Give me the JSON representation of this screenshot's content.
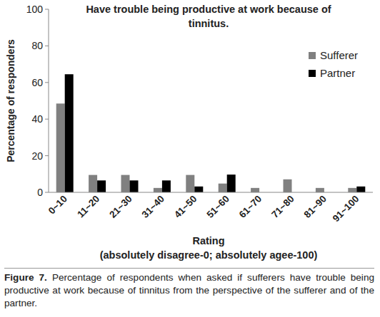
{
  "chart_data": {
    "type": "bar",
    "title": "Have trouble being productive at work because of tinnitus.",
    "y_label": "Percentage of responders",
    "x_label": "Rating",
    "annotations": [
      "(absolutely disagree-0; absolutely agee-100)",
      "Figure 7.",
      "Percentage of respondents when asked if sufferers have trouble being productive at work because of tinnitus from the perspective of the sufferer and of the partner."
    ],
    "categories": [
      "0~10",
      "11~20",
      "21~30",
      "31~40",
      "41~50",
      "51~60",
      "61~70",
      "71~80",
      "81~90",
      "91~100"
    ],
    "series": [
      {
        "name": "Sufferer",
        "color": "#808080",
        "values": [
          48.5,
          9.5,
          9.5,
          2.4,
          9.5,
          4.8,
          2.4,
          7.1,
          2.4,
          2.4
        ]
      },
      {
        "name": "Partner",
        "color": "#000000",
        "values": [
          64.5,
          6.5,
          6.5,
          6.5,
          3.2,
          9.7,
          0,
          0,
          0,
          3.2
        ]
      }
    ],
    "ylim": [
      0,
      100
    ],
    "yticks": [
      0,
      20,
      40,
      60,
      80,
      100
    ],
    "grid": false,
    "legend": "right"
  }
}
